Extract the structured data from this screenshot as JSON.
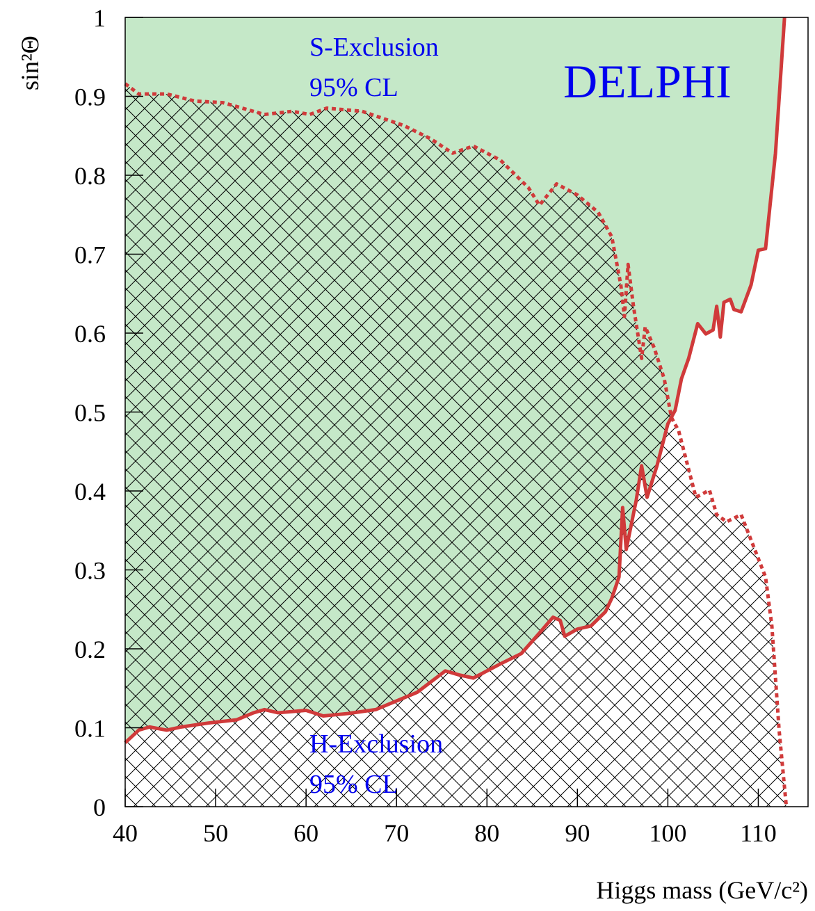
{
  "chart_data": {
    "type": "exclusion",
    "x_label": "Higgs mass (GeV/c²)",
    "y_label": "sin²Θ",
    "annotations": [
      "S-Exclusion",
      "95% CL",
      "DELPHI",
      "H-Exclusion",
      "95% CL"
    ],
    "annotation_color": "#0000ee",
    "xlim": [
      40,
      115.5
    ],
    "xticks": [
      40,
      50,
      60,
      70,
      80,
      90,
      100,
      110
    ],
    "ylim": [
      0,
      1
    ],
    "yticks": [
      0,
      0.1,
      0.2,
      0.3,
      0.4,
      0.5,
      0.6,
      0.7,
      0.8,
      0.9,
      1
    ],
    "series": [
      {
        "style": "solid",
        "fill": "green",
        "color": "#d03a3a",
        "area_color": "#c5e8c8",
        "x": [
          40,
          41.5,
          42.7,
          44.6,
          46.2,
          49.2,
          52.3,
          54.2,
          55.4,
          56.9,
          60,
          61.9,
          64.6,
          67.7,
          70,
          72.3,
          75.4,
          76.9,
          78.5,
          81.5,
          83.8,
          85.8,
          87.3,
          88.1,
          88.6,
          90,
          91.5,
          93.1,
          93.8,
          94.6,
          95,
          95.4,
          96.5,
          97.1,
          97.7,
          98.8,
          100,
          100.8,
          101.5,
          102.3,
          103.3,
          104.2,
          105,
          105.4,
          105.8,
          106.2,
          106.9,
          107.3,
          108.1,
          109.2,
          110,
          110.8,
          111.9,
          112.9
        ],
        "values": [
          0.081,
          0.097,
          0.101,
          0.097,
          0.101,
          0.106,
          0.11,
          0.119,
          0.123,
          0.119,
          0.122,
          0.115,
          0.118,
          0.123,
          0.134,
          0.145,
          0.172,
          0.167,
          0.163,
          0.181,
          0.194,
          0.22,
          0.24,
          0.236,
          0.216,
          0.225,
          0.229,
          0.247,
          0.264,
          0.291,
          0.379,
          0.326,
          0.388,
          0.432,
          0.392,
          0.432,
          0.485,
          0.502,
          0.542,
          0.568,
          0.612,
          0.599,
          0.604,
          0.634,
          0.595,
          0.639,
          0.643,
          0.63,
          0.627,
          0.661,
          0.705,
          0.707,
          0.828,
          1
        ]
      },
      {
        "style": "dotted",
        "fill": "hatch",
        "color": "#d03a3a",
        "x": [
          40,
          41.5,
          44.6,
          47.7,
          50.8,
          55.4,
          58.5,
          60.4,
          62.3,
          66.2,
          70.8,
          73.8,
          76.2,
          78.5,
          81.5,
          84.6,
          85.8,
          87.7,
          90,
          92.3,
          93.8,
          94.8,
          95.2,
          95.6,
          96.2,
          97.1,
          97.5,
          98.5,
          99.6,
          100.4,
          101.2,
          103.1,
          104.6,
          105.4,
          106.5,
          108.1,
          110.8,
          111.5,
          112.3,
          113.1
        ],
        "values": [
          0.916,
          0.903,
          0.903,
          0.894,
          0.892,
          0.877,
          0.881,
          0.877,
          0.885,
          0.881,
          0.863,
          0.846,
          0.828,
          0.837,
          0.819,
          0.784,
          0.762,
          0.789,
          0.775,
          0.753,
          0.722,
          0.661,
          0.621,
          0.687,
          0.634,
          0.568,
          0.608,
          0.581,
          0.542,
          0.493,
          0.476,
          0.392,
          0.401,
          0.37,
          0.361,
          0.37,
          0.291,
          0.229,
          0.097,
          0
        ]
      }
    ]
  }
}
